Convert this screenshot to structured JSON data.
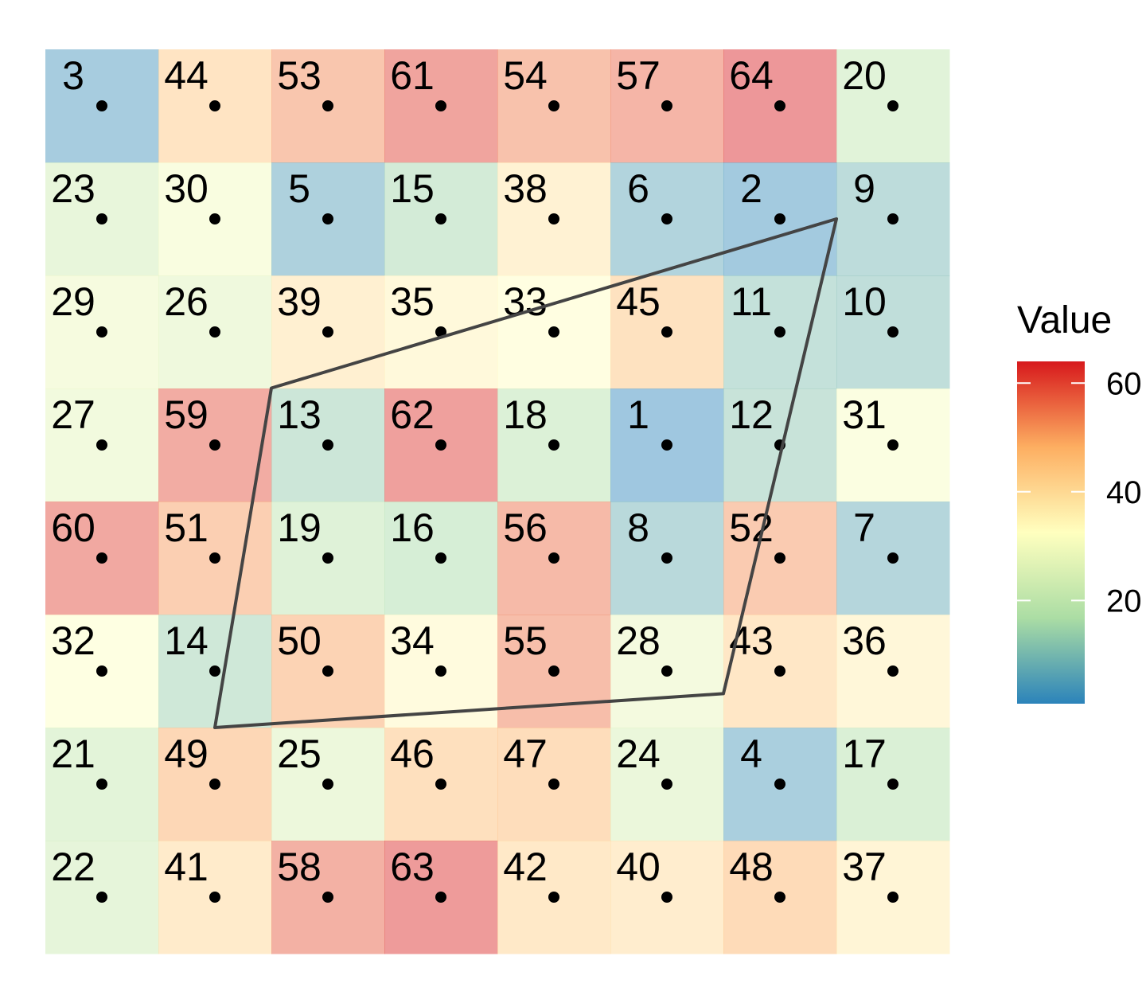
{
  "chart_data": {
    "type": "heatmap",
    "title": "",
    "xlabel": "",
    "ylabel": "",
    "grid": false,
    "rows": 8,
    "cols": 8,
    "values": [
      [
        3,
        44,
        53,
        61,
        54,
        57,
        64,
        20
      ],
      [
        23,
        30,
        5,
        15,
        38,
        6,
        2,
        9
      ],
      [
        29,
        26,
        39,
        35,
        33,
        45,
        11,
        10
      ],
      [
        27,
        59,
        13,
        62,
        18,
        1,
        12,
        31
      ],
      [
        60,
        51,
        19,
        16,
        56,
        8,
        52,
        7
      ],
      [
        32,
        14,
        50,
        34,
        55,
        28,
        43,
        36
      ],
      [
        21,
        49,
        25,
        46,
        47,
        24,
        4,
        17
      ],
      [
        22,
        41,
        58,
        63,
        42,
        40,
        48,
        37
      ]
    ],
    "polygon": {
      "description_vertices_cell_coords": [
        [
          7,
          1
        ],
        [
          2,
          3
        ],
        [
          1,
          6
        ],
        [
          6,
          5.8
        ]
      ],
      "color": "#444444"
    },
    "colorscale": {
      "name": "Spectral",
      "min": 1,
      "max": 64,
      "colors": [
        "#2b83ba",
        "#abdda4",
        "#ffffbf",
        "#fdae61",
        "#d7191c"
      ],
      "cell_opacity": 0.45
    },
    "legend": {
      "title": "Value",
      "placement": "right",
      "ticks": [
        20,
        40,
        60
      ]
    }
  }
}
